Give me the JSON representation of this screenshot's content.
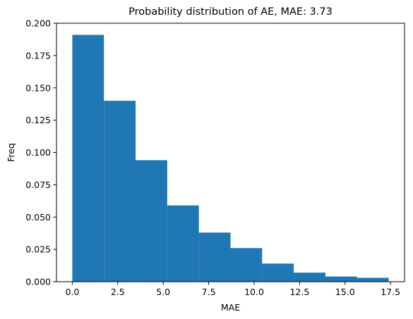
{
  "chart_data": {
    "type": "bar",
    "title": "Probability distribution of AE, MAE: 3.73",
    "xlabel": "MAE",
    "ylabel": "Freq",
    "bin_edges": [
      0.0,
      1.74,
      3.48,
      5.22,
      6.96,
      8.7,
      10.44,
      12.18,
      13.92,
      15.66,
      17.4
    ],
    "values": [
      0.191,
      0.14,
      0.094,
      0.059,
      0.038,
      0.026,
      0.014,
      0.007,
      0.004,
      0.003
    ],
    "xlim": [
      -0.87,
      18.27
    ],
    "ylim": [
      0.0,
      0.2
    ],
    "xticks": [
      0.0,
      2.5,
      5.0,
      7.5,
      10.0,
      12.5,
      15.0,
      17.5
    ],
    "xtick_labels": [
      "0.0",
      "2.5",
      "5.0",
      "7.5",
      "10.0",
      "12.5",
      "15.0",
      "17.5"
    ],
    "yticks": [
      0.0,
      0.025,
      0.05,
      0.075,
      0.1,
      0.125,
      0.15,
      0.175,
      0.2
    ],
    "ytick_labels": [
      "0.000",
      "0.025",
      "0.050",
      "0.075",
      "0.100",
      "0.125",
      "0.150",
      "0.175",
      "0.200"
    ],
    "grid": false,
    "colors": {
      "bar": "#1f77b4",
      "axes": "#000000"
    }
  }
}
